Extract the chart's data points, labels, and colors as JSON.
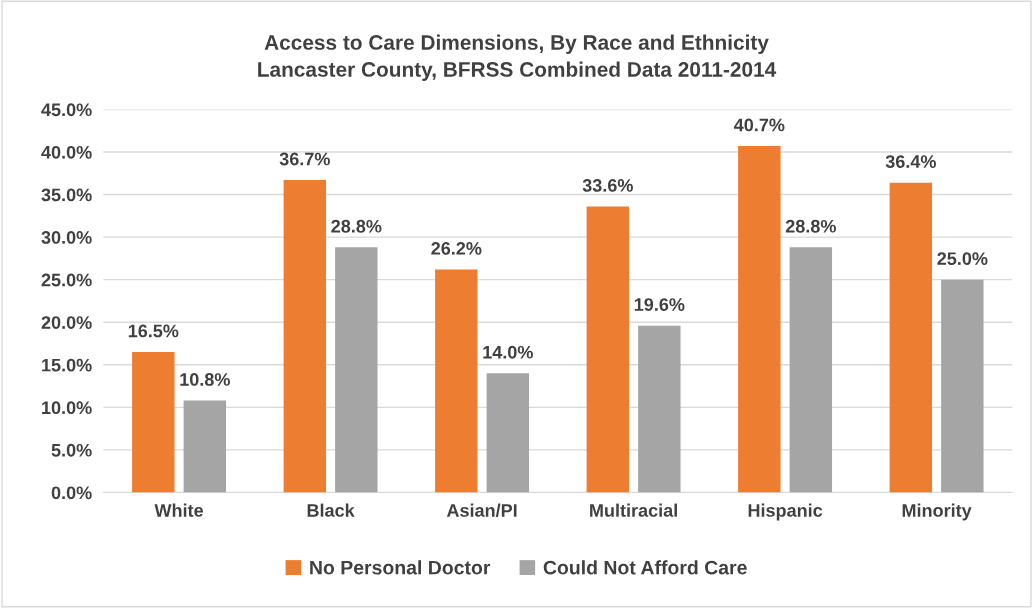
{
  "chart_data": {
    "type": "bar",
    "title": "Access to Care Dimensions, By Race and Ethnicity\nLancaster County, BFRSS Combined Data 2011-2014",
    "categories": [
      "White",
      "Black",
      "Asian/PI",
      "Multiracial",
      "Hispanic",
      "Minority"
    ],
    "series": [
      {
        "name": "No Personal Doctor",
        "color": "#ed7d31",
        "values": [
          16.5,
          36.7,
          26.2,
          33.6,
          40.7,
          36.4
        ],
        "value_labels": [
          "16.5%",
          "36.7%",
          "26.2%",
          "33.6%",
          "40.7%",
          "36.4%"
        ]
      },
      {
        "name": "Could Not Afford Care",
        "color": "#a5a5a5",
        "values": [
          10.8,
          28.8,
          14.0,
          19.6,
          28.8,
          25.0
        ],
        "value_labels": [
          "10.8%",
          "28.8%",
          "14.0%",
          "19.6%",
          "28.8%",
          "25.0%"
        ]
      }
    ],
    "ylim": [
      0,
      45
    ],
    "yticks": [
      {
        "value": 0,
        "label": "0.0%"
      },
      {
        "value": 5,
        "label": "5.0%"
      },
      {
        "value": 10,
        "label": "10.0%"
      },
      {
        "value": 15,
        "label": "15.0%"
      },
      {
        "value": 20,
        "label": "20.0%"
      },
      {
        "value": 25,
        "label": "25.0%"
      },
      {
        "value": 30,
        "label": "30.0%"
      },
      {
        "value": 35,
        "label": "35.0%"
      },
      {
        "value": 40,
        "label": "40.0%"
      },
      {
        "value": 45,
        "label": "45.0%"
      }
    ],
    "grid": "y",
    "legend": "bottom"
  }
}
